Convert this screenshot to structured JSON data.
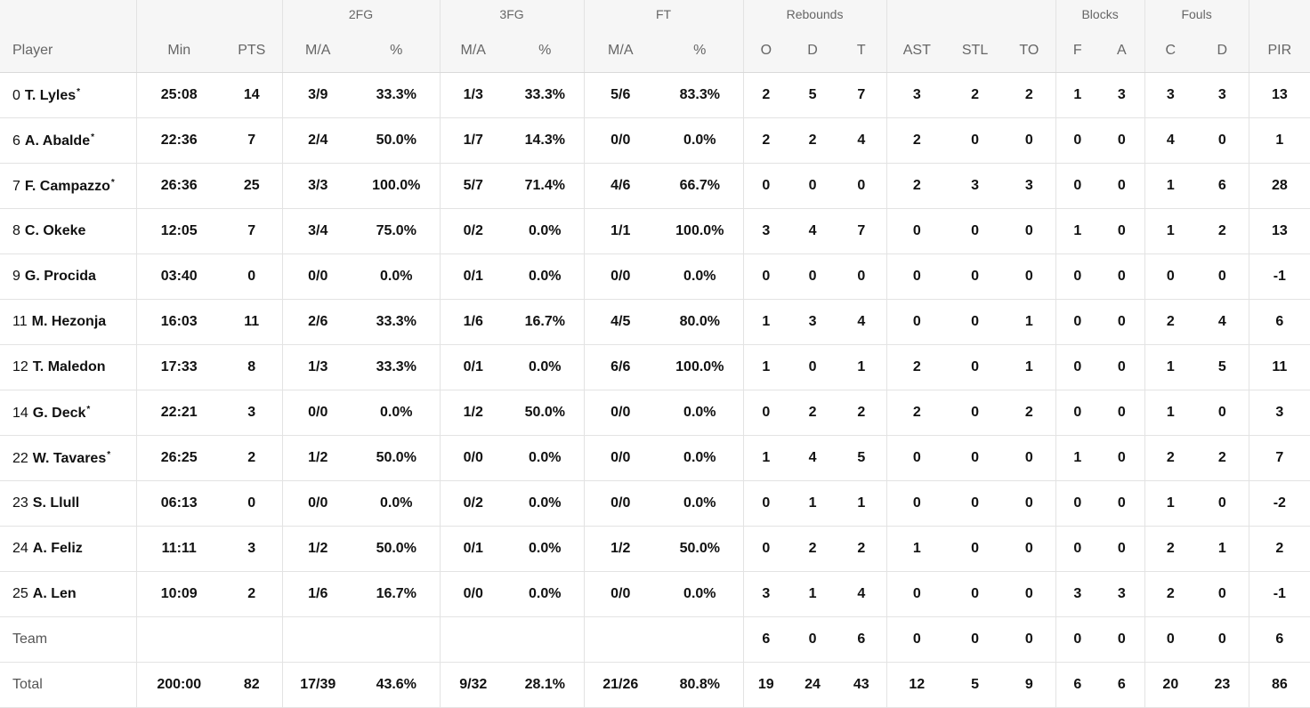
{
  "groups": {
    "fg2": "2FG",
    "fg3": "3FG",
    "ft": "FT",
    "rebounds": "Rebounds",
    "blocks": "Blocks",
    "fouls": "Fouls"
  },
  "columns": [
    "Player",
    "Min",
    "PTS",
    "M/A",
    "%",
    "M/A",
    "%",
    "M/A",
    "%",
    "O",
    "D",
    "T",
    "AST",
    "STL",
    "TO",
    "F",
    "A",
    "C",
    "D",
    "PIR"
  ],
  "players": [
    {
      "num": "0",
      "name": "T. Lyles",
      "starter": "*",
      "stats": [
        "25:08",
        "14",
        "3/9",
        "33.3%",
        "1/3",
        "33.3%",
        "5/6",
        "83.3%",
        "2",
        "5",
        "7",
        "3",
        "2",
        "2",
        "1",
        "3",
        "3",
        "3",
        "13"
      ]
    },
    {
      "num": "6",
      "name": "A. Abalde",
      "starter": "*",
      "stats": [
        "22:36",
        "7",
        "2/4",
        "50.0%",
        "1/7",
        "14.3%",
        "0/0",
        "0.0%",
        "2",
        "2",
        "4",
        "2",
        "0",
        "0",
        "0",
        "0",
        "4",
        "0",
        "1"
      ]
    },
    {
      "num": "7",
      "name": "F. Campazzo",
      "starter": "*",
      "stats": [
        "26:36",
        "25",
        "3/3",
        "100.0%",
        "5/7",
        "71.4%",
        "4/6",
        "66.7%",
        "0",
        "0",
        "0",
        "2",
        "3",
        "3",
        "0",
        "0",
        "1",
        "6",
        "28"
      ]
    },
    {
      "num": "8",
      "name": "C. Okeke",
      "starter": "",
      "stats": [
        "12:05",
        "7",
        "3/4",
        "75.0%",
        "0/2",
        "0.0%",
        "1/1",
        "100.0%",
        "3",
        "4",
        "7",
        "0",
        "0",
        "0",
        "1",
        "0",
        "1",
        "2",
        "13"
      ]
    },
    {
      "num": "9",
      "name": "G. Procida",
      "starter": "",
      "stats": [
        "03:40",
        "0",
        "0/0",
        "0.0%",
        "0/1",
        "0.0%",
        "0/0",
        "0.0%",
        "0",
        "0",
        "0",
        "0",
        "0",
        "0",
        "0",
        "0",
        "0",
        "0",
        "-1"
      ]
    },
    {
      "num": "11",
      "name": "M. Hezonja",
      "starter": "",
      "stats": [
        "16:03",
        "11",
        "2/6",
        "33.3%",
        "1/6",
        "16.7%",
        "4/5",
        "80.0%",
        "1",
        "3",
        "4",
        "0",
        "0",
        "1",
        "0",
        "0",
        "2",
        "4",
        "6"
      ]
    },
    {
      "num": "12",
      "name": "T. Maledon",
      "starter": "",
      "stats": [
        "17:33",
        "8",
        "1/3",
        "33.3%",
        "0/1",
        "0.0%",
        "6/6",
        "100.0%",
        "1",
        "0",
        "1",
        "2",
        "0",
        "1",
        "0",
        "0",
        "1",
        "5",
        "11"
      ]
    },
    {
      "num": "14",
      "name": "G. Deck",
      "starter": "*",
      "stats": [
        "22:21",
        "3",
        "0/0",
        "0.0%",
        "1/2",
        "50.0%",
        "0/0",
        "0.0%",
        "0",
        "2",
        "2",
        "2",
        "0",
        "2",
        "0",
        "0",
        "1",
        "0",
        "3"
      ]
    },
    {
      "num": "22",
      "name": "W. Tavares",
      "starter": "*",
      "stats": [
        "26:25",
        "2",
        "1/2",
        "50.0%",
        "0/0",
        "0.0%",
        "0/0",
        "0.0%",
        "1",
        "4",
        "5",
        "0",
        "0",
        "0",
        "1",
        "0",
        "2",
        "2",
        "7"
      ]
    },
    {
      "num": "23",
      "name": "S. Llull",
      "starter": "",
      "stats": [
        "06:13",
        "0",
        "0/0",
        "0.0%",
        "0/2",
        "0.0%",
        "0/0",
        "0.0%",
        "0",
        "1",
        "1",
        "0",
        "0",
        "0",
        "0",
        "0",
        "1",
        "0",
        "-2"
      ]
    },
    {
      "num": "24",
      "name": "A. Feliz",
      "starter": "",
      "stats": [
        "11:11",
        "3",
        "1/2",
        "50.0%",
        "0/1",
        "0.0%",
        "1/2",
        "50.0%",
        "0",
        "2",
        "2",
        "1",
        "0",
        "0",
        "0",
        "0",
        "2",
        "1",
        "2"
      ]
    },
    {
      "num": "25",
      "name": "A. Len",
      "starter": "",
      "stats": [
        "10:09",
        "2",
        "1/6",
        "16.7%",
        "0/0",
        "0.0%",
        "0/0",
        "0.0%",
        "3",
        "1",
        "4",
        "0",
        "0",
        "0",
        "3",
        "3",
        "2",
        "0",
        "-1"
      ]
    }
  ],
  "team": {
    "label": "Team",
    "stats": [
      "",
      "",
      "",
      "",
      "",
      "",
      "",
      "",
      "6",
      "0",
      "6",
      "0",
      "0",
      "0",
      "0",
      "0",
      "0",
      "0",
      "6"
    ]
  },
  "total": {
    "label": "Total",
    "stats": [
      "200:00",
      "82",
      "17/39",
      "43.6%",
      "9/32",
      "28.1%",
      "21/26",
      "80.8%",
      "19",
      "24",
      "43",
      "12",
      "5",
      "9",
      "6",
      "6",
      "20",
      "23",
      "86"
    ]
  }
}
